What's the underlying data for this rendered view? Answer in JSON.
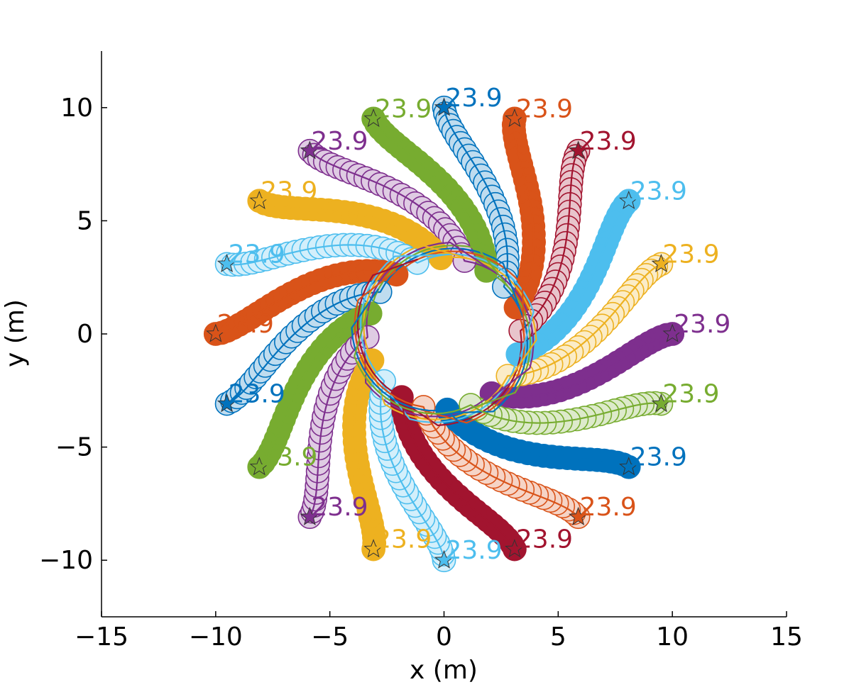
{
  "chart_data": {
    "type": "scatter",
    "title": "",
    "xlabel": "x (m)",
    "ylabel": "y (m)",
    "xlim": [
      -15,
      15
    ],
    "ylim": [
      -12.5,
      12.5
    ],
    "xticks": [
      -15,
      -10,
      -5,
      0,
      5,
      10,
      15
    ],
    "yticks": [
      -10,
      -5,
      0,
      5,
      10
    ],
    "xtick_labels": [
      "−15",
      "−10",
      "−5",
      "0",
      "5",
      "10",
      "15"
    ],
    "ytick_labels": [
      "−10",
      "−5",
      "0",
      "5",
      "10"
    ],
    "grid": false,
    "legend": "none",
    "description_values": {
      "agent_count": 20,
      "start_radius": 10,
      "obstacle_radius": 3
    },
    "palette": [
      "#0072bd",
      "#d95319",
      "#edb120",
      "#7e2f8e",
      "#77ac30",
      "#4dbeee",
      "#a2142f"
    ],
    "agents": [
      {
        "start": [
          10.0,
          0.0
        ],
        "goal": [
          -10.0,
          0.0
        ],
        "color": "#7e2f8e",
        "time_label": "23.9"
      },
      {
        "start": [
          9.51,
          3.09
        ],
        "goal": [
          -9.51,
          -3.09
        ],
        "color": "#edb120",
        "time_label": "23.9"
      },
      {
        "start": [
          8.09,
          5.88
        ],
        "goal": [
          -8.09,
          -5.88
        ],
        "color": "#4dbeee",
        "time_label": "23.9"
      },
      {
        "start": [
          5.88,
          8.09
        ],
        "goal": [
          -5.88,
          -8.09
        ],
        "color": "#a2142f",
        "time_label": "23.9"
      },
      {
        "start": [
          3.09,
          9.51
        ],
        "goal": [
          -3.09,
          -9.51
        ],
        "color": "#d95319",
        "time_label": "23.9"
      },
      {
        "start": [
          0.0,
          10.0
        ],
        "goal": [
          0.0,
          -10.0
        ],
        "color": "#0072bd",
        "time_label": "23.9"
      },
      {
        "start": [
          -3.09,
          9.51
        ],
        "goal": [
          3.09,
          -9.51
        ],
        "color": "#77ac30",
        "time_label": "23.9"
      },
      {
        "start": [
          -5.88,
          8.09
        ],
        "goal": [
          5.88,
          -8.09
        ],
        "color": "#7e2f8e",
        "time_label": "23.9"
      },
      {
        "start": [
          -8.09,
          5.88
        ],
        "goal": [
          8.09,
          -5.88
        ],
        "color": "#edb120",
        "time_label": "23.9"
      },
      {
        "start": [
          -9.51,
          3.09
        ],
        "goal": [
          9.51,
          -3.09
        ],
        "color": "#4dbeee",
        "time_label": "23.9"
      },
      {
        "start": [
          -10.0,
          0.0
        ],
        "goal": [
          10.0,
          0.0
        ],
        "color": "#d95319",
        "time_label": "23.9"
      },
      {
        "start": [
          -9.51,
          -3.09
        ],
        "goal": [
          9.51,
          3.09
        ],
        "color": "#0072bd",
        "time_label": "23.9"
      },
      {
        "start": [
          -8.09,
          -5.88
        ],
        "goal": [
          8.09,
          5.88
        ],
        "color": "#77ac30",
        "time_label": "23.9"
      },
      {
        "start": [
          -5.88,
          -8.09
        ],
        "goal": [
          5.88,
          8.09
        ],
        "color": "#7e2f8e",
        "time_label": "23.9"
      },
      {
        "start": [
          -3.09,
          -9.51
        ],
        "goal": [
          3.09,
          9.51
        ],
        "color": "#edb120",
        "time_label": "23.9"
      },
      {
        "start": [
          0.0,
          -10.0
        ],
        "goal": [
          0.0,
          10.0
        ],
        "color": "#4dbeee",
        "time_label": "23.9"
      },
      {
        "start": [
          3.09,
          -9.51
        ],
        "goal": [
          -3.09,
          9.51
        ],
        "color": "#a2142f",
        "time_label": "23.9"
      },
      {
        "start": [
          5.88,
          -8.09
        ],
        "goal": [
          -5.88,
          8.09
        ],
        "color": "#d95319",
        "time_label": "23.9"
      },
      {
        "start": [
          8.09,
          -5.88
        ],
        "goal": [
          -8.09,
          5.88
        ],
        "color": "#0072bd",
        "time_label": "23.9"
      },
      {
        "start": [
          9.51,
          -3.09
        ],
        "goal": [
          -9.51,
          3.09
        ],
        "color": "#77ac30",
        "time_label": "23.9"
      }
    ]
  }
}
